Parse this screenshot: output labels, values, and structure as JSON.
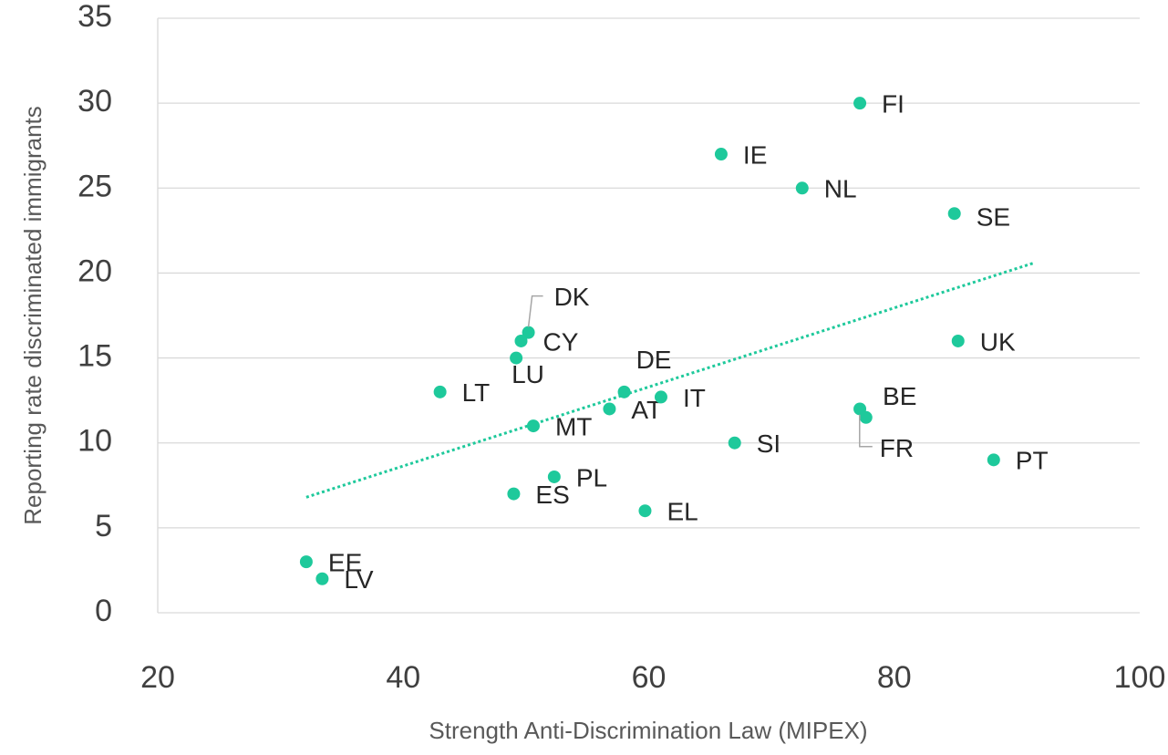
{
  "chart_data": {
    "type": "scatter",
    "x_label": "Strength Anti-Discrimination Law (MIPEX)",
    "y_label": "Reporting rate discriminated immigrants",
    "labels": [
      "FI",
      "IE",
      "NL",
      "SE",
      "UK",
      "DK",
      "CY",
      "LU",
      "LT",
      "DE",
      "AT",
      "IT",
      "MT",
      "BE",
      "FR",
      "SI",
      "PT",
      "PL",
      "ES",
      "EL",
      "EE",
      "LV"
    ],
    "x": [
      77.2,
      65.9,
      72.5,
      84.9,
      85.2,
      50.2,
      49.6,
      49.2,
      43.0,
      58.0,
      56.8,
      61.0,
      50.6,
      77.2,
      77.7,
      67.0,
      88.1,
      52.3,
      49.0,
      59.7,
      32.1,
      33.4
    ],
    "values": [
      30,
      27,
      25,
      23.5,
      16,
      16.5,
      16,
      15,
      13,
      13,
      12,
      12.7,
      11,
      12,
      11.5,
      10,
      9,
      8,
      7,
      6,
      3,
      2
    ],
    "color": "#1ec99b",
    "trendline": {
      "x": [
        32.1,
        91.4
      ],
      "values": [
        6.8,
        20.6
      ],
      "color": "#1ec99b"
    },
    "xlim": [
      20,
      100
    ],
    "xticks": [
      20,
      40,
      60,
      80,
      100
    ],
    "ylim": [
      0,
      35
    ],
    "yticks": [
      0,
      5,
      10,
      15,
      20,
      25,
      30,
      35
    ],
    "grid": true
  }
}
